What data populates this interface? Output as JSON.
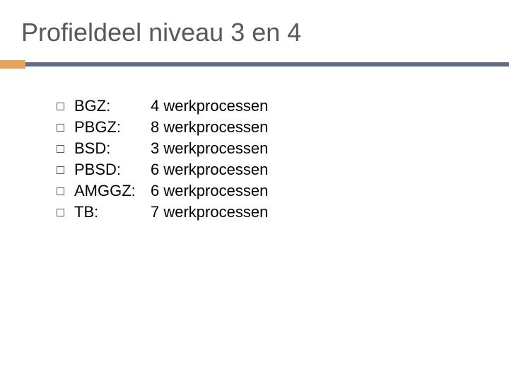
{
  "title": "Profieldeel niveau 3 en 4",
  "colors": {
    "title_color": "#595959",
    "accent_color": "#e8a55a",
    "divider_color": "#606d84",
    "bullet_border": "#595959",
    "text_color": "#000000",
    "background": "#ffffff"
  },
  "typography": {
    "title_fontsize": 36,
    "body_fontsize": 22,
    "font_family": "Arial"
  },
  "items": [
    {
      "label": "BGZ:",
      "value": "4 werkprocessen"
    },
    {
      "label": "PBGZ:",
      "value": "8 werkprocessen"
    },
    {
      "label": "BSD:",
      "value": "3 werkprocessen"
    },
    {
      "label": "PBSD:",
      "value": "6 werkprocessen"
    },
    {
      "label": "AMGGZ:",
      "value": "6 werkprocessen"
    },
    {
      "label": "TB:",
      "value": "7 werkprocessen"
    }
  ]
}
